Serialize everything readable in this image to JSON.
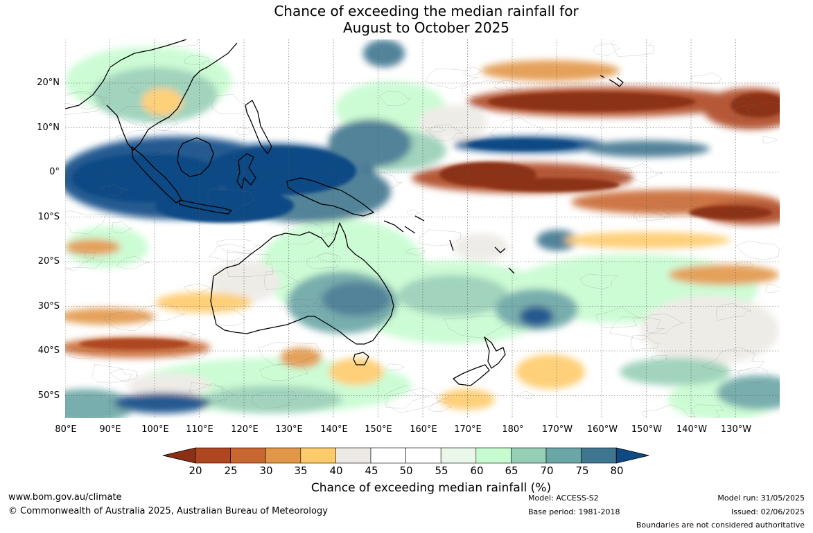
{
  "title": {
    "line1": "Chance of exceeding the median rainfall for",
    "line2": "August to October 2025"
  },
  "axes": {
    "lat_labels": [
      "20°N",
      "10°N",
      "0°",
      "10°S",
      "20°S",
      "30°S",
      "40°S",
      "50°S"
    ],
    "lon_labels": [
      "80°E",
      "90°E",
      "100°E",
      "110°E",
      "120°E",
      "130°E",
      "140°E",
      "150°E",
      "160°E",
      "170°E",
      "180°",
      "170°W",
      "160°W",
      "150°W",
      "140°W",
      "130°W"
    ]
  },
  "colorbar": {
    "ticks": [
      "20",
      "25",
      "30",
      "35",
      "40",
      "45",
      "50",
      "55",
      "60",
      "65",
      "70",
      "75",
      "80"
    ],
    "colors": [
      "#8c3015",
      "#ae4620",
      "#c96731",
      "#e29748",
      "#fecb6c",
      "#edeae5",
      "#ffffff",
      "#ffffff",
      "#e9f8ea",
      "#c7fcd0",
      "#97cfb6",
      "#6aa6a5",
      "#3f768f",
      "#104a85"
    ],
    "title": "Chance of exceeding median rainfall (%)"
  },
  "footer": {
    "url": "www.bom.gov.au/climate",
    "copyright": "© Commonwealth of Australia 2025, Australian Bureau of Meteorology",
    "model": "Model: ACCESS-S2",
    "base_period": "Base period: 1981-2018",
    "model_run": "Model run: 31/05/2025",
    "issued": "Issued: 02/06/2025",
    "disclaimer": "Boundaries are not considered authoritative"
  }
}
